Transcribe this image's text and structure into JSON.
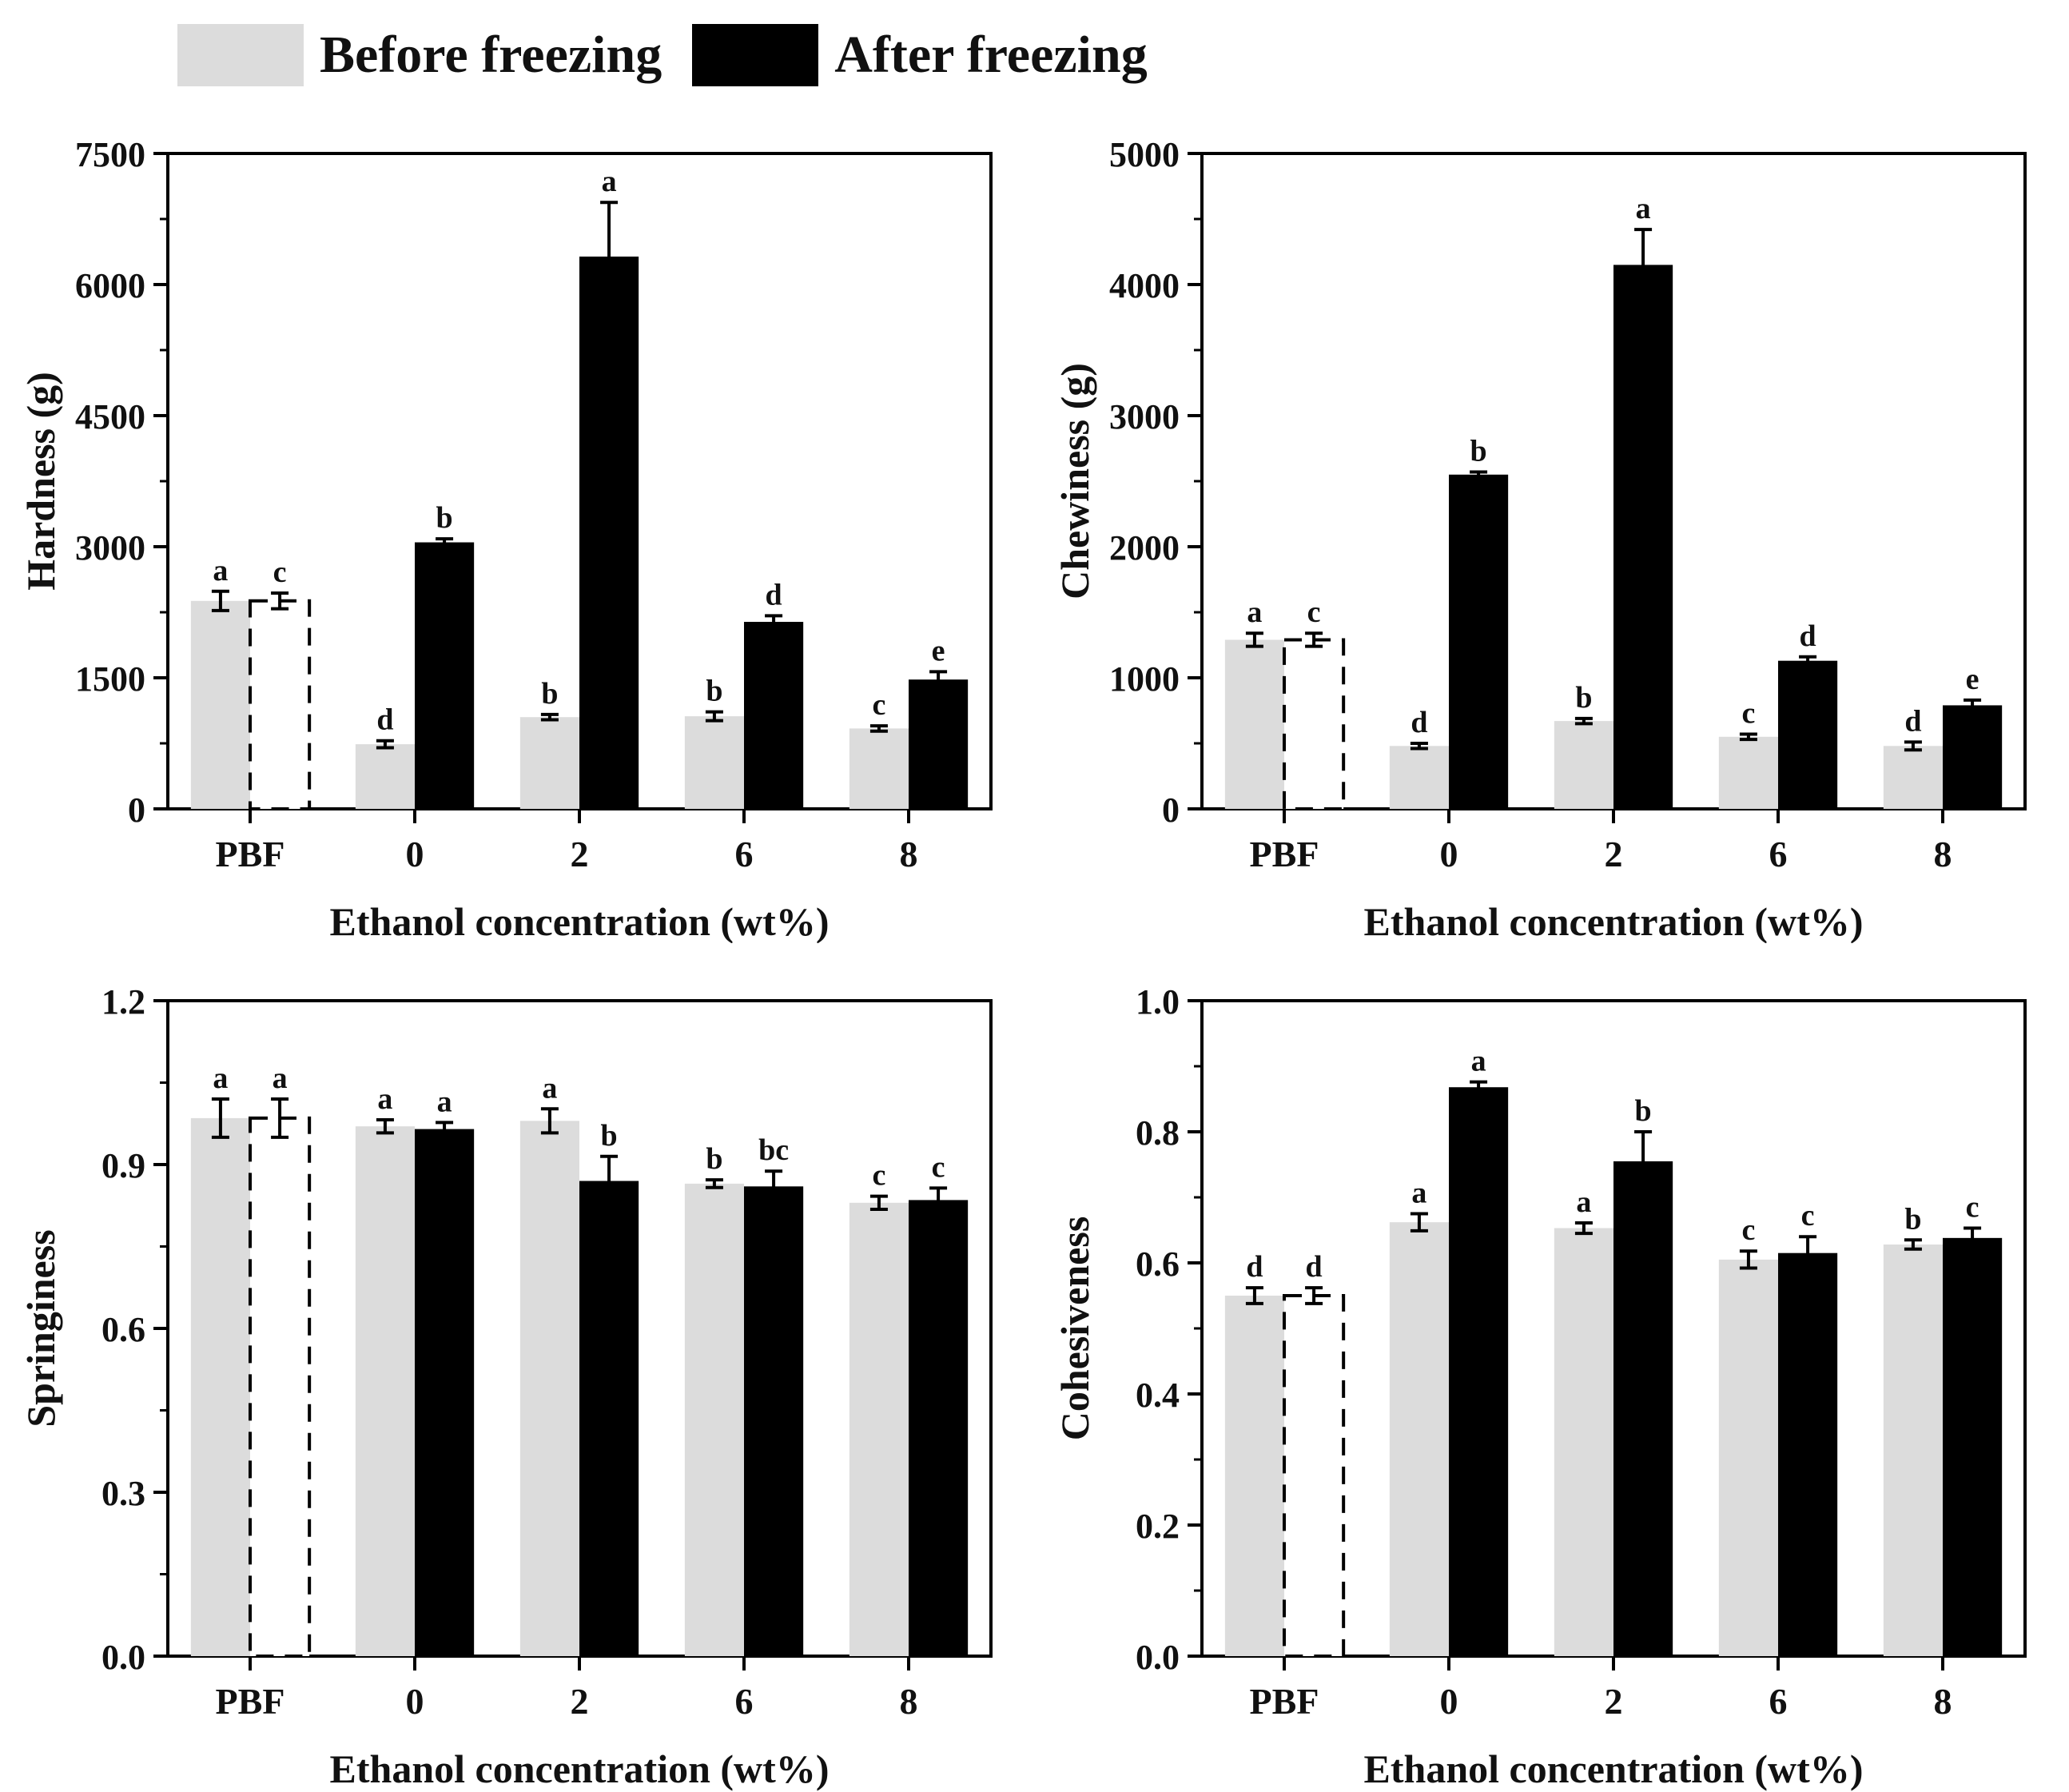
{
  "legend": {
    "before_label": "Before freezing",
    "after_label": "After freezing",
    "before_color": "#dcdcdc",
    "after_color": "#000000"
  },
  "chart_data": [
    {
      "type": "bar",
      "panel": "top-left",
      "title": "",
      "xlabel": "Ethanol concentration (wt%)",
      "ylabel": "Hardness (g)",
      "ylim": [
        0,
        7500
      ],
      "yticks": [
        0,
        1500,
        3000,
        4500,
        6000,
        7500
      ],
      "ytick_labels": [
        "0",
        "1500",
        "3000",
        "4500",
        "6000",
        "7500"
      ],
      "categories": [
        "PBF",
        "0",
        "2",
        "6",
        "8"
      ],
      "series": [
        {
          "name": "Before freezing",
          "values": [
            2380,
            740,
            1050,
            1060,
            920
          ],
          "errors": [
            110,
            40,
            30,
            50,
            30
          ],
          "letters": [
            "a",
            "d",
            "b",
            "b",
            "c"
          ]
        },
        {
          "name": "After freezing",
          "values": [
            2380,
            3050,
            6320,
            2140,
            1480
          ],
          "errors": [
            90,
            40,
            620,
            70,
            90
          ],
          "letters": [
            "c",
            "b",
            "a",
            "d",
            "e"
          ]
        }
      ],
      "dashed_first_after": true
    },
    {
      "type": "bar",
      "panel": "top-right",
      "title": "",
      "xlabel": "Ethanol concentration (wt%)",
      "ylabel": "Chewiness (g)",
      "ylim": [
        0,
        5000
      ],
      "yticks": [
        0,
        1000,
        2000,
        3000,
        4000,
        5000
      ],
      "ytick_labels": [
        "0",
        "1000",
        "2000",
        "3000",
        "4000",
        "5000"
      ],
      "categories": [
        "PBF",
        "0",
        "2",
        "6",
        "8"
      ],
      "series": [
        {
          "name": "Before freezing",
          "values": [
            1290,
            480,
            670,
            550,
            480
          ],
          "errors": [
            50,
            20,
            20,
            20,
            30
          ],
          "letters": [
            "a",
            "d",
            "b",
            "c",
            "d"
          ]
        },
        {
          "name": "After freezing",
          "values": [
            1290,
            2550,
            4150,
            1130,
            790
          ],
          "errors": [
            50,
            20,
            270,
            30,
            40
          ],
          "letters": [
            "c",
            "b",
            "a",
            "d",
            "e"
          ]
        }
      ],
      "dashed_first_after": true
    },
    {
      "type": "bar",
      "panel": "bottom-left",
      "title": "",
      "xlabel": "Ethanol concentration (wt%)",
      "ylabel": "Springiness",
      "ylim": [
        0,
        1.2
      ],
      "yticks": [
        0,
        0.3,
        0.6,
        0.9,
        1.2
      ],
      "ytick_labels": [
        "0.0",
        "0.3",
        "0.6",
        "0.9",
        "1.2"
      ],
      "categories": [
        "PBF",
        "0",
        "2",
        "6",
        "8"
      ],
      "series": [
        {
          "name": "Before freezing",
          "values": [
            0.985,
            0.97,
            0.98,
            0.865,
            0.83
          ],
          "errors": [
            0.035,
            0.012,
            0.022,
            0.007,
            0.012
          ],
          "letters": [
            "a",
            "a",
            "a",
            "b",
            "c"
          ]
        },
        {
          "name": "After freezing",
          "values": [
            0.985,
            0.965,
            0.87,
            0.86,
            0.835
          ],
          "errors": [
            0.035,
            0.012,
            0.045,
            0.028,
            0.022
          ],
          "letters": [
            "a",
            "a",
            "b",
            "bc",
            "c"
          ]
        }
      ],
      "dashed_first_after": true
    },
    {
      "type": "bar",
      "panel": "bottom-right",
      "title": "",
      "xlabel": "Ethanol concentration (wt%)",
      "ylabel": "Cohesiveness",
      "ylim": [
        0,
        1.0
      ],
      "yticks": [
        0,
        0.2,
        0.4,
        0.6,
        0.8,
        1.0
      ],
      "ytick_labels": [
        "0.0",
        "0.2",
        "0.4",
        "0.6",
        "0.8",
        "1.0"
      ],
      "categories": [
        "PBF",
        "0",
        "2",
        "6",
        "8"
      ],
      "series": [
        {
          "name": "Before freezing",
          "values": [
            0.55,
            0.662,
            0.653,
            0.605,
            0.628
          ],
          "errors": [
            0.012,
            0.013,
            0.008,
            0.013,
            0.007
          ],
          "letters": [
            "d",
            "a",
            "a",
            "c",
            "b"
          ]
        },
        {
          "name": "After freezing",
          "values": [
            0.55,
            0.868,
            0.755,
            0.615,
            0.638
          ],
          "errors": [
            0.012,
            0.008,
            0.045,
            0.025,
            0.015
          ],
          "letters": [
            "d",
            "a",
            "b",
            "c",
            "c"
          ]
        }
      ],
      "dashed_first_after": true
    }
  ]
}
